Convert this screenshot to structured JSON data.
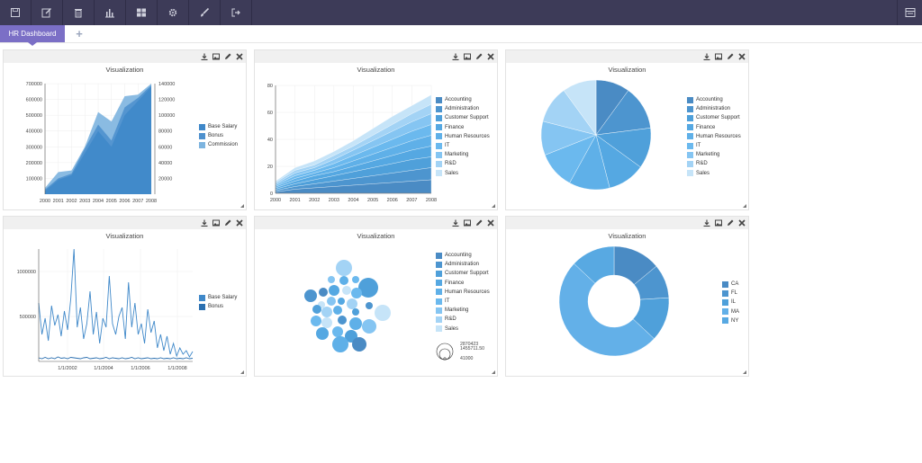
{
  "toolbar": {
    "buttons": [
      {
        "name": "save-icon"
      },
      {
        "name": "edit-icon"
      },
      {
        "name": "trash-icon"
      },
      {
        "name": "bar-chart-icon"
      },
      {
        "name": "layout-icon"
      },
      {
        "name": "gear-icon"
      },
      {
        "name": "brush-icon"
      },
      {
        "name": "sign-out-icon"
      }
    ],
    "right_icon": "menu-icon"
  },
  "tabs": [
    {
      "label": "HR Dashboard"
    }
  ],
  "add_tab_label": "+",
  "panel_title": "Visualization",
  "colors": {
    "topbar": "#3d3b58",
    "tab": "#7b6fc6",
    "blues": [
      "#4a8bc4",
      "#4d95cf",
      "#4fa0da",
      "#55a8e2",
      "#5fb0e8",
      "#6bb9ee",
      "#85c5f2",
      "#a3d3f5",
      "#c6e4f8"
    ]
  },
  "chart_data": [
    {
      "type": "area",
      "title": "Visualization",
      "x": [
        "2000",
        "2001",
        "2002",
        "2003",
        "2004",
        "2005",
        "2006",
        "2007",
        "2008"
      ],
      "ylim": [
        0,
        700000
      ],
      "y2lim": [
        0,
        140000
      ],
      "yticks": [
        100000,
        200000,
        300000,
        400000,
        500000,
        600000,
        700000
      ],
      "y2ticks": [
        20000,
        40000,
        60000,
        80000,
        100000,
        120000,
        140000
      ],
      "series": [
        {
          "name": "Base Salary",
          "values": [
            40000,
            140000,
            150000,
            300000,
            520000,
            460000,
            620000,
            630000,
            700000
          ]
        },
        {
          "name": "Bonus",
          "values": [
            30000,
            100000,
            130000,
            290000,
            440000,
            340000,
            550000,
            610000,
            690000
          ]
        },
        {
          "name": "Commission",
          "values": [
            20000,
            90000,
            120000,
            260000,
            400000,
            300000,
            500000,
            590000,
            680000
          ]
        }
      ]
    },
    {
      "type": "area",
      "title": "Visualization",
      "x": [
        "2000",
        "2001",
        "2002",
        "2003",
        "2004",
        "2005",
        "2006",
        "2007",
        "2008"
      ],
      "ylim": [
        0,
        80
      ],
      "yticks": [
        0,
        20,
        40,
        60,
        80
      ],
      "series": [
        {
          "name": "Accounting",
          "values": [
            1,
            3,
            4,
            5,
            6,
            7,
            8,
            9,
            10
          ]
        },
        {
          "name": "Administration",
          "values": [
            1,
            2,
            3,
            4,
            5,
            6,
            7,
            8,
            9
          ]
        },
        {
          "name": "Customer Support",
          "values": [
            1,
            2,
            3,
            4,
            5,
            6,
            7,
            8,
            8
          ]
        },
        {
          "name": "Finance",
          "values": [
            1,
            2,
            3,
            3,
            4,
            5,
            6,
            7,
            8
          ]
        },
        {
          "name": "Human Resources",
          "values": [
            1,
            2,
            2,
            3,
            4,
            5,
            6,
            7,
            8
          ]
        },
        {
          "name": "IT",
          "values": [
            1,
            2,
            2,
            3,
            4,
            5,
            6,
            7,
            8
          ]
        },
        {
          "name": "Marketing",
          "values": [
            1,
            2,
            2,
            3,
            4,
            5,
            6,
            7,
            8
          ]
        },
        {
          "name": "R&D",
          "values": [
            1,
            2,
            2,
            3,
            3,
            4,
            5,
            6,
            7
          ]
        },
        {
          "name": "Sales",
          "values": [
            1,
            2,
            3,
            3,
            4,
            5,
            6,
            6,
            7
          ]
        }
      ]
    },
    {
      "type": "pie",
      "title": "Visualization",
      "labels": [
        "Accounting",
        "Administration",
        "Customer Support",
        "Finance",
        "Human Resources",
        "IT",
        "Marketing",
        "R&D",
        "Sales"
      ],
      "values": [
        10,
        13,
        12,
        11,
        12,
        11,
        10,
        11,
        10
      ]
    },
    {
      "type": "line",
      "title": "Visualization",
      "xticks": [
        "1/1/2002",
        "1/1/2004",
        "1/1/2006",
        "1/1/2008"
      ],
      "ylim": [
        0,
        1250000
      ],
      "yticks": [
        500000,
        1000000
      ],
      "series": [
        {
          "name": "Base Salary",
          "values": [
            650000,
            300000,
            480000,
            230000,
            620000,
            400000,
            520000,
            280000,
            560000,
            350000,
            700000,
            1250000,
            380000,
            600000,
            250000,
            420000,
            780000,
            300000,
            550000,
            200000,
            480000,
            380000,
            950000,
            420000,
            300000,
            500000,
            600000,
            250000,
            880000,
            380000,
            650000,
            300000,
            420000,
            200000,
            580000,
            320000,
            450000,
            150000,
            300000,
            120000,
            280000,
            80000,
            200000,
            60000,
            150000,
            80000,
            120000,
            50000,
            110000
          ]
        },
        {
          "name": "Bonus",
          "values": [
            40000,
            30000,
            45000,
            30000,
            40000,
            30000,
            50000,
            35000,
            40000,
            30000,
            45000,
            40000,
            35000,
            30000,
            40000,
            45000,
            30000,
            35000,
            40000,
            30000,
            35000,
            45000,
            30000,
            40000,
            35000,
            30000,
            40000,
            30000,
            35000,
            45000,
            30000,
            40000,
            30000,
            35000,
            40000,
            30000,
            35000,
            30000,
            40000,
            30000,
            35000,
            30000,
            40000,
            30000,
            35000,
            30000,
            40000,
            30000,
            35000
          ]
        }
      ]
    },
    {
      "type": "scatter",
      "title": "Visualization",
      "labels": [
        "Accounting",
        "Administration",
        "Customer Support",
        "Finance",
        "Human Resources",
        "IT",
        "Marketing",
        "R&D",
        "Sales"
      ],
      "size_legend": [
        "2870423",
        "1455711.50",
        "41000"
      ]
    },
    {
      "type": "pie",
      "title": "Visualization",
      "donut": true,
      "labels": [
        "CA",
        "FL",
        "IL",
        "MA",
        "NY"
      ],
      "values": [
        14,
        10,
        13,
        50,
        13
      ]
    }
  ]
}
